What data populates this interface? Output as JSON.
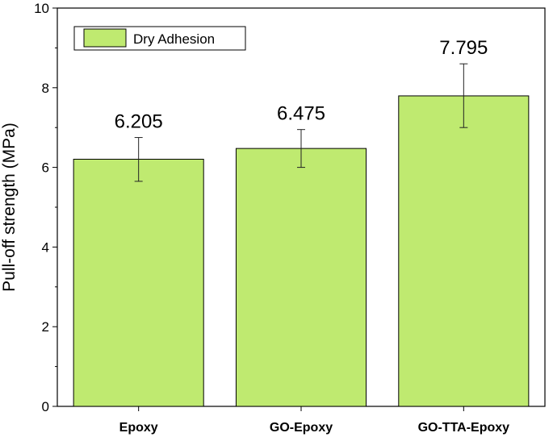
{
  "chart_data": {
    "type": "bar",
    "title": "",
    "xlabel": "",
    "ylabel": "Pull-off strength (MPa)",
    "categories": [
      "Epoxy",
      "GO-Epoxy",
      "GO-TTA-Epoxy"
    ],
    "series": [
      {
        "name": "Dry Adhesion",
        "values": [
          6.205,
          6.475,
          7.795
        ],
        "error_low": [
          5.65,
          6.0,
          7.0
        ],
        "error_high": [
          6.75,
          6.95,
          8.6
        ],
        "data_labels": [
          "6.205",
          "6.475",
          "7.795"
        ],
        "color": "#bfea70"
      }
    ],
    "ylim": [
      0,
      10
    ],
    "yticks": [
      0,
      2,
      4,
      6,
      8,
      10
    ],
    "legend": {
      "position": "top-left",
      "entries": [
        "Dry Adhesion"
      ]
    },
    "grid": false
  },
  "colors": {
    "bar_fill": "#bfea70",
    "bar_stroke": "#000000",
    "axis": "#000000"
  }
}
